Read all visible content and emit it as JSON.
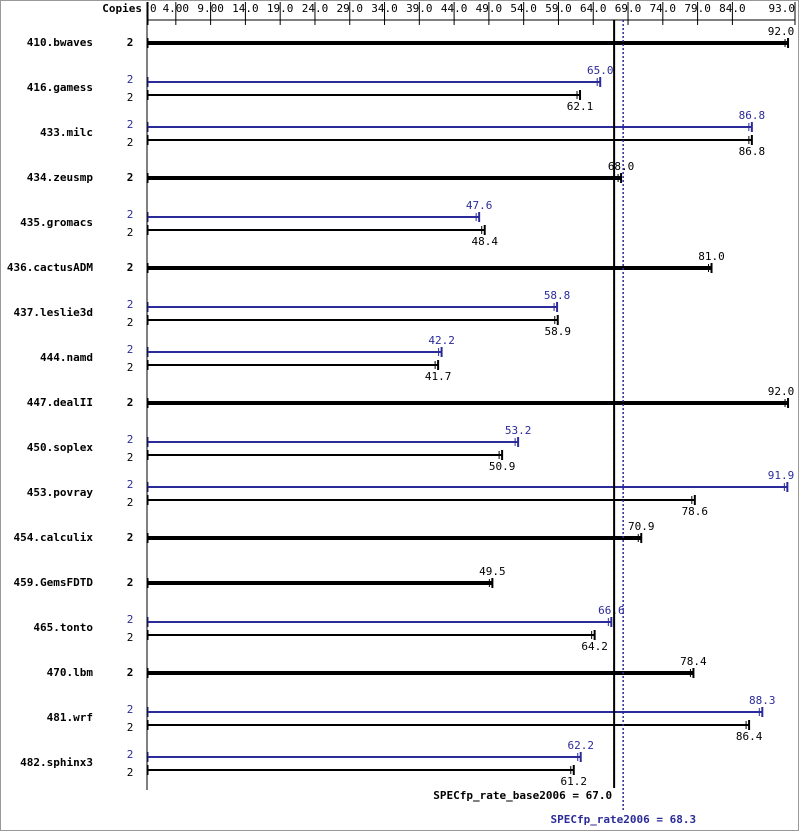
{
  "chart_data": {
    "type": "spec-bar",
    "copies_header": "Copies",
    "categories": [
      "410.bwaves",
      "416.gamess",
      "433.milc",
      "434.zeusmp",
      "435.gromacs",
      "436.cactusADM",
      "437.leslie3d",
      "444.namd",
      "447.dealII",
      "450.soplex",
      "453.povray",
      "454.calculix",
      "459.GemsFDTD",
      "465.tonto",
      "470.lbm",
      "481.wrf",
      "482.sphinx3"
    ],
    "series": [
      {
        "color": "#2b2b9a",
        "copies": [
          null,
          2,
          2,
          null,
          2,
          null,
          2,
          2,
          null,
          2,
          2,
          null,
          null,
          2,
          null,
          2,
          2
        ],
        "values": [
          null,
          65.0,
          86.8,
          null,
          47.6,
          null,
          58.8,
          42.2,
          null,
          53.2,
          91.9,
          null,
          null,
          66.6,
          null,
          88.3,
          62.2
        ],
        "value_labels": [
          null,
          "65.0",
          "86.8",
          null,
          "47.6",
          null,
          "58.8",
          "42.2",
          null,
          "53.2",
          "91.9",
          null,
          null,
          "66.6",
          null,
          "88.3",
          "62.2"
        ]
      },
      {
        "color": "#000000",
        "copies": [
          2,
          2,
          2,
          2,
          2,
          2,
          2,
          2,
          2,
          2,
          2,
          2,
          2,
          2,
          2,
          2,
          2
        ],
        "values": [
          92.0,
          62.1,
          86.8,
          68.0,
          48.4,
          81.0,
          58.9,
          41.7,
          92.0,
          50.9,
          78.6,
          70.9,
          49.5,
          64.2,
          78.4,
          86.4,
          61.2
        ],
        "value_labels": [
          "92.0",
          "62.1",
          "86.8",
          "68.0",
          "48.4",
          "81.0",
          "58.9",
          "41.7",
          "92.0",
          "50.9",
          "78.6",
          "70.9",
          "49.5",
          "64.2",
          "78.4",
          "86.4",
          "61.2"
        ]
      }
    ],
    "xlim": [
      0,
      93
    ],
    "xticks": [
      0,
      {
        "value": 4,
        "label": "4.00"
      },
      {
        "value": 9,
        "label": "9.00"
      },
      {
        "value": 14,
        "label": "14.0"
      },
      {
        "value": 19,
        "label": "19.0"
      },
      {
        "value": 24,
        "label": "24.0"
      },
      {
        "value": 29,
        "label": "29.0"
      },
      {
        "value": 34,
        "label": "34.0"
      },
      {
        "value": 39,
        "label": "39.0"
      },
      {
        "value": 44,
        "label": "44.0"
      },
      {
        "value": 49,
        "label": "49.0"
      },
      {
        "value": 54,
        "label": "54.0"
      },
      {
        "value": 59,
        "label": "59.0"
      },
      {
        "value": 64,
        "label": "64.0"
      },
      {
        "value": 69,
        "label": "69.0"
      },
      {
        "value": 74,
        "label": "74.0"
      },
      {
        "value": 79,
        "label": "79.0"
      },
      {
        "value": 84,
        "label": "84.0"
      },
      {
        "value": 93,
        "label": "93.0"
      }
    ],
    "reference_lines": [
      {
        "label": "SPECfp_rate_base2006 = 67.0",
        "value": 67,
        "color": "#000000",
        "style": "solid"
      },
      {
        "label": "SPECfp_rate2006 = 68.3",
        "value": 68.3,
        "color": "#2b2b9a",
        "style": "dotted"
      }
    ]
  }
}
